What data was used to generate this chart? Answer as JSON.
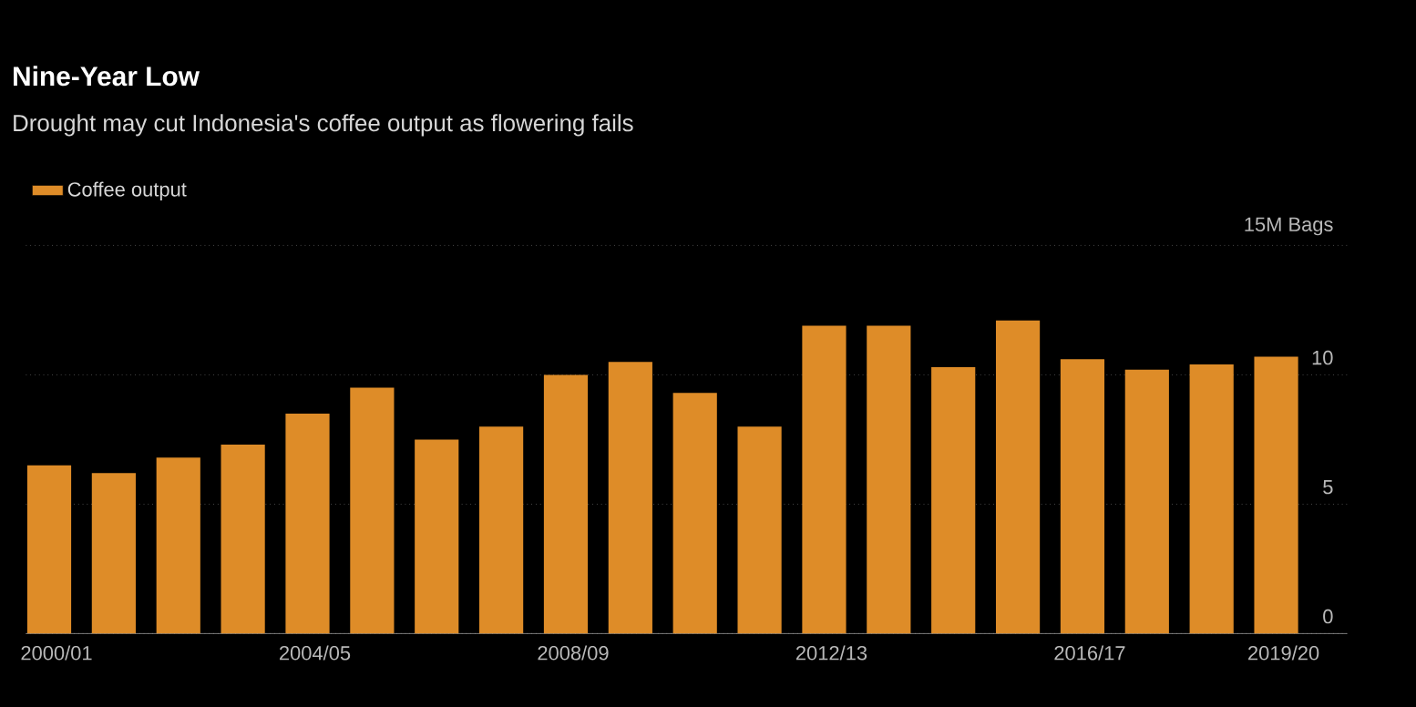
{
  "chart_data": {
    "type": "bar",
    "title": "Nine-Year Low",
    "subtitle": "Drought may cut Indonesia's coffee output as flowering fails",
    "categories": [
      "2000/01",
      null,
      null,
      null,
      "2004/05",
      null,
      null,
      null,
      "2008/09",
      null,
      null,
      null,
      "2012/13",
      null,
      null,
      null,
      "2016/17",
      null,
      null,
      "2019/20"
    ],
    "series": [
      {
        "name": "Coffee output",
        "color": "#de8c28",
        "values": [
          6.5,
          6.2,
          6.8,
          7.3,
          8.5,
          9.5,
          7.5,
          8.0,
          10.0,
          10.5,
          9.3,
          8.0,
          11.9,
          11.9,
          10.3,
          12.1,
          10.6,
          10.2,
          10.4,
          10.7
        ]
      }
    ],
    "ylim": [
      0,
      15
    ],
    "yticks": [
      0,
      5,
      10,
      {
        "value": 15,
        "label": "15M Bags"
      }
    ],
    "grid": "y",
    "legend": "top left"
  }
}
